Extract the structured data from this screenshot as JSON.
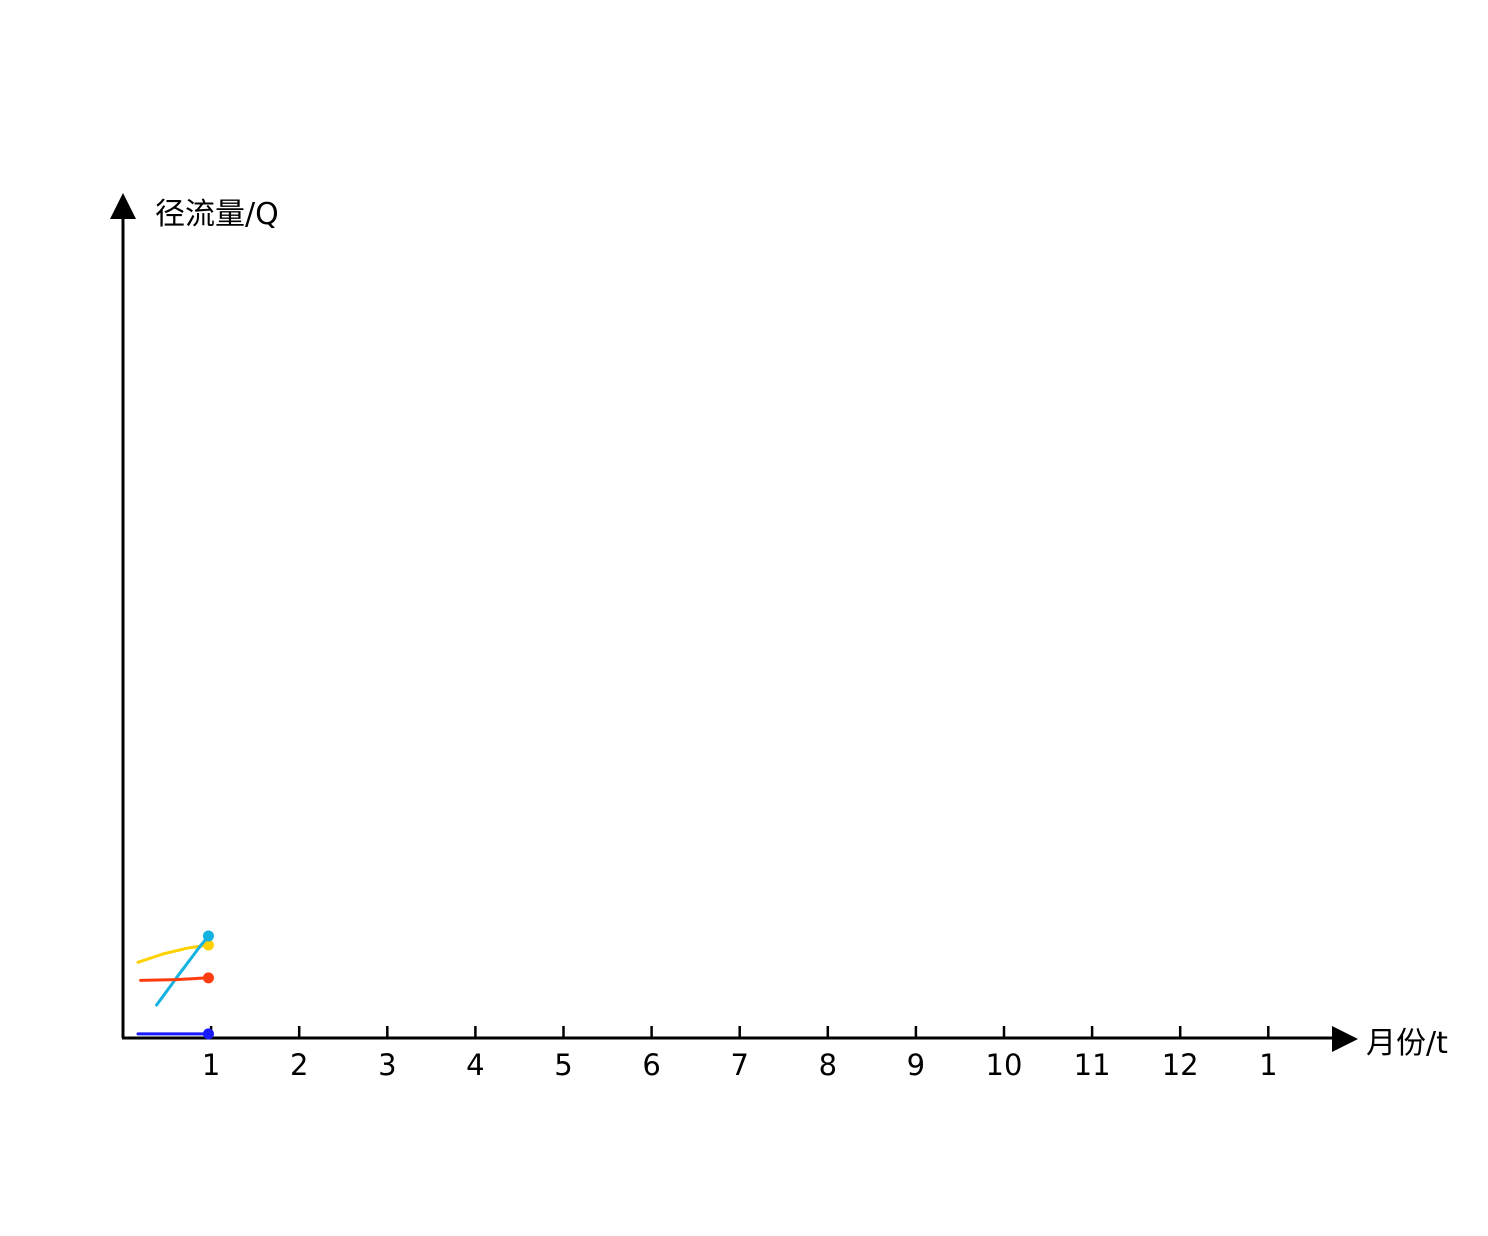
{
  "chart_data": {
    "type": "line",
    "xlabel": "月份/t",
    "ylabel": "径流量/Q",
    "tick_labels": [
      "1",
      "2",
      "3",
      "4",
      "5",
      "6",
      "7",
      "8",
      "9",
      "10",
      "11",
      "12",
      "1"
    ],
    "x_positions": [
      1,
      2,
      3,
      4,
      5,
      6,
      7,
      8,
      9,
      10,
      11,
      12,
      13
    ],
    "xlim": [
      0,
      14.3
    ],
    "ylim": [
      0,
      100
    ],
    "grid": false,
    "legend": "none",
    "series": [
      {
        "color": "#ffd100",
        "x": [
          0.17,
          0.45,
          0.72,
          0.97
        ],
        "y": [
          9.2,
          10.2,
          10.9,
          11.3
        ]
      },
      {
        "color": "#13b2e0",
        "x": [
          0.38,
          0.62,
          0.85,
          0.97
        ],
        "y": [
          4.0,
          7.5,
          10.8,
          12.4
        ]
      },
      {
        "color": "#ff3c10",
        "x": [
          0.2,
          0.6,
          0.97
        ],
        "y": [
          7.0,
          7.1,
          7.3
        ]
      },
      {
        "color": "#1a1aff",
        "x": [
          0.17,
          0.6,
          0.97
        ],
        "y": [
          0.5,
          0.5,
          0.5
        ]
      }
    ]
  }
}
